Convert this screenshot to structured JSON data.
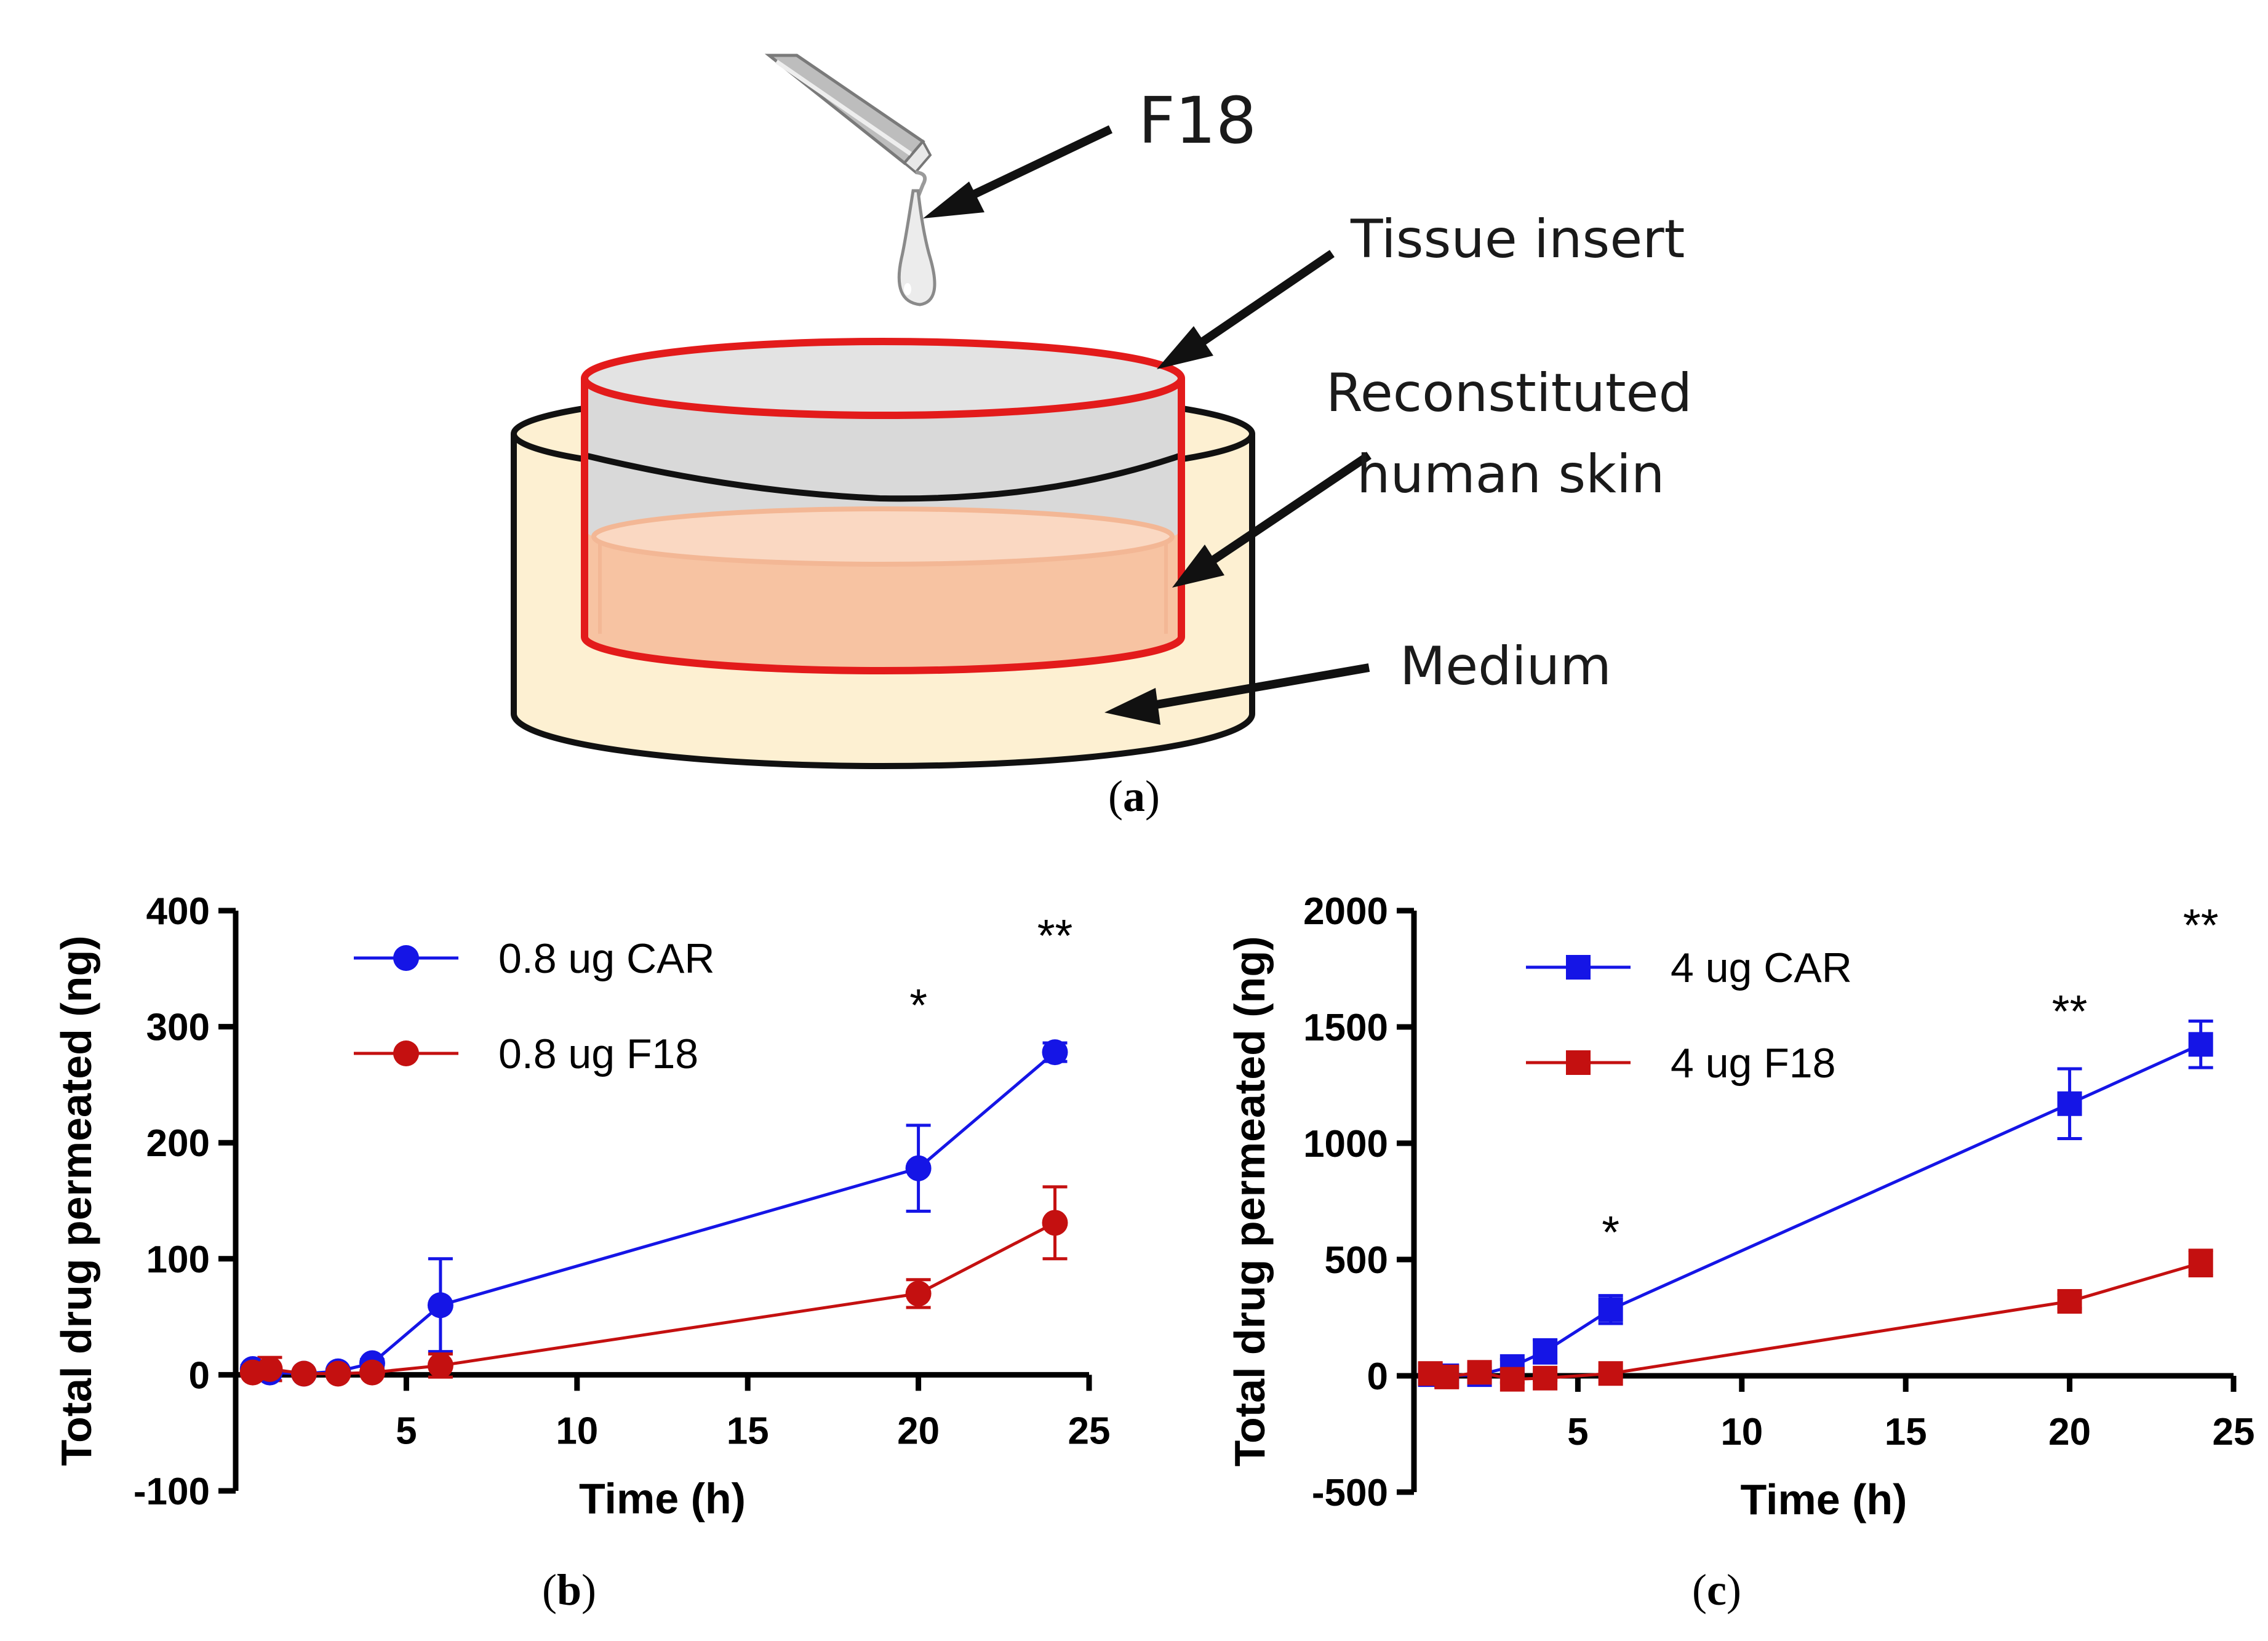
{
  "diagram": {
    "drug_label": "F18",
    "insert_label": "Tissue insert",
    "skin_label_line1": "Reconstituted",
    "skin_label_line2": "human skin",
    "medium_label": "Medium",
    "caption_open": "(",
    "caption_letter": "a",
    "caption_close": ")",
    "colors": {
      "insert": "#e31b1b",
      "skin": "#f6c6a6",
      "medium": "#fdf0d2",
      "membrane": "#d9d9d9"
    }
  },
  "chart_data": [
    {
      "type": "line",
      "panel": "b",
      "caption_open": "(",
      "caption_letter": "b",
      "caption_close": ")",
      "xlabel": "Time (h)",
      "ylabel": "Total drug permeated (ng)",
      "xlim": [
        0,
        25
      ],
      "ylim": [
        -100,
        400
      ],
      "xticks": [
        5,
        10,
        15,
        20,
        25
      ],
      "yticks": [
        -100,
        0,
        100,
        200,
        300,
        400
      ],
      "marker": "circle",
      "legend_position": "top-left",
      "series": [
        {
          "name": "0.8 ug CAR",
          "color": "#1515e6",
          "x": [
            0.5,
            1,
            2,
            3,
            4,
            6,
            20,
            24
          ],
          "y": [
            5,
            2,
            1,
            3,
            10,
            60,
            178,
            278
          ],
          "err": [
            3,
            2,
            2,
            2,
            3,
            40,
            37,
            8
          ]
        },
        {
          "name": "0.8 ug F18",
          "color": "#c41010",
          "x": [
            0.5,
            1,
            2,
            3,
            4,
            6,
            20,
            24
          ],
          "y": [
            2,
            5,
            1,
            1,
            2,
            8,
            70,
            131
          ],
          "err": [
            3,
            10,
            2,
            2,
            2,
            10,
            12,
            31
          ]
        }
      ],
      "annotations": [
        {
          "x": 20,
          "y": 305,
          "text": "*"
        },
        {
          "x": 24,
          "y": 365,
          "text": "**"
        }
      ]
    },
    {
      "type": "line",
      "panel": "c",
      "caption_open": "(",
      "caption_letter": "c",
      "caption_close": ")",
      "xlabel": "Time (h)",
      "ylabel": "Total drug permeated (ng)",
      "xlim": [
        0,
        25
      ],
      "ylim": [
        -500,
        2000
      ],
      "xticks": [
        5,
        10,
        15,
        20,
        25
      ],
      "yticks": [
        -500,
        0,
        500,
        1000,
        1500,
        2000
      ],
      "marker": "square",
      "legend_position": "top-left",
      "series": [
        {
          "name": "4 ug CAR",
          "color": "#1515e6",
          "x": [
            0.5,
            1,
            2,
            3,
            4,
            6,
            20,
            24
          ],
          "y": [
            5,
            0,
            5,
            40,
            105,
            285,
            1170,
            1425
          ],
          "err": [
            10,
            10,
            15,
            30,
            50,
            60,
            150,
            100
          ]
        },
        {
          "name": "4 ug F18",
          "color": "#c41010",
          "x": [
            0.5,
            1,
            2,
            3,
            4,
            6,
            20,
            24
          ],
          "y": [
            10,
            -5,
            15,
            -15,
            -10,
            10,
            320,
            485
          ],
          "err": [
            20,
            10,
            20,
            15,
            10,
            10,
            30,
            55
          ]
        }
      ],
      "annotations": [
        {
          "x": 6,
          "y": 550,
          "text": "*"
        },
        {
          "x": 20,
          "y": 1500,
          "text": "**"
        },
        {
          "x": 24,
          "y": 1870,
          "text": "**"
        }
      ]
    }
  ]
}
